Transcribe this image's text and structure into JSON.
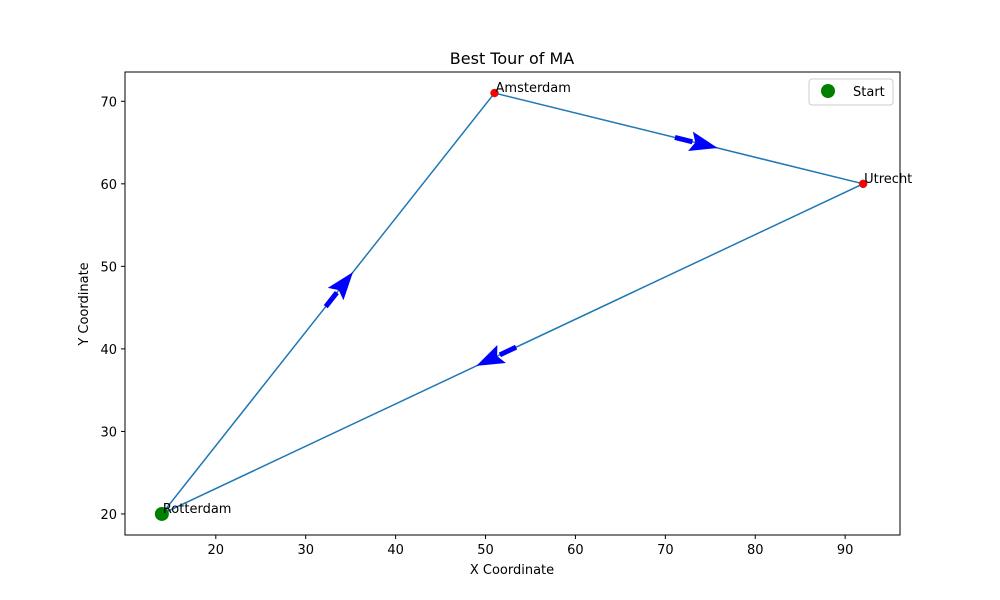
{
  "chart_data": {
    "type": "line",
    "title": "Best Tour of MA",
    "xlabel": "X Coordinate",
    "ylabel": "Y Coordinate",
    "xlim": [
      9.9,
      96.1
    ],
    "ylim": [
      17.45,
      73.55
    ],
    "xticks": [
      20,
      30,
      40,
      50,
      60,
      70,
      80,
      90
    ],
    "yticks": [
      20,
      30,
      40,
      50,
      60,
      70
    ],
    "grid": false,
    "legend": {
      "placement": "top-right",
      "entries": [
        {
          "label": "Start",
          "color": "#008000",
          "marker": "circle"
        }
      ]
    },
    "cities": [
      {
        "name": "Rotterdam",
        "x": 14,
        "y": 20
      },
      {
        "name": "Amsterdam",
        "x": 51,
        "y": 71
      },
      {
        "name": "Utrecht",
        "x": 92,
        "y": 60
      }
    ],
    "tour": [
      "Rotterdam",
      "Amsterdam",
      "Utrecht",
      "Rotterdam"
    ],
    "start": "Rotterdam",
    "colors": {
      "line": "#1f77b4",
      "arrow": "#0000ff",
      "city": "#ff0000",
      "start": "#008000"
    }
  }
}
